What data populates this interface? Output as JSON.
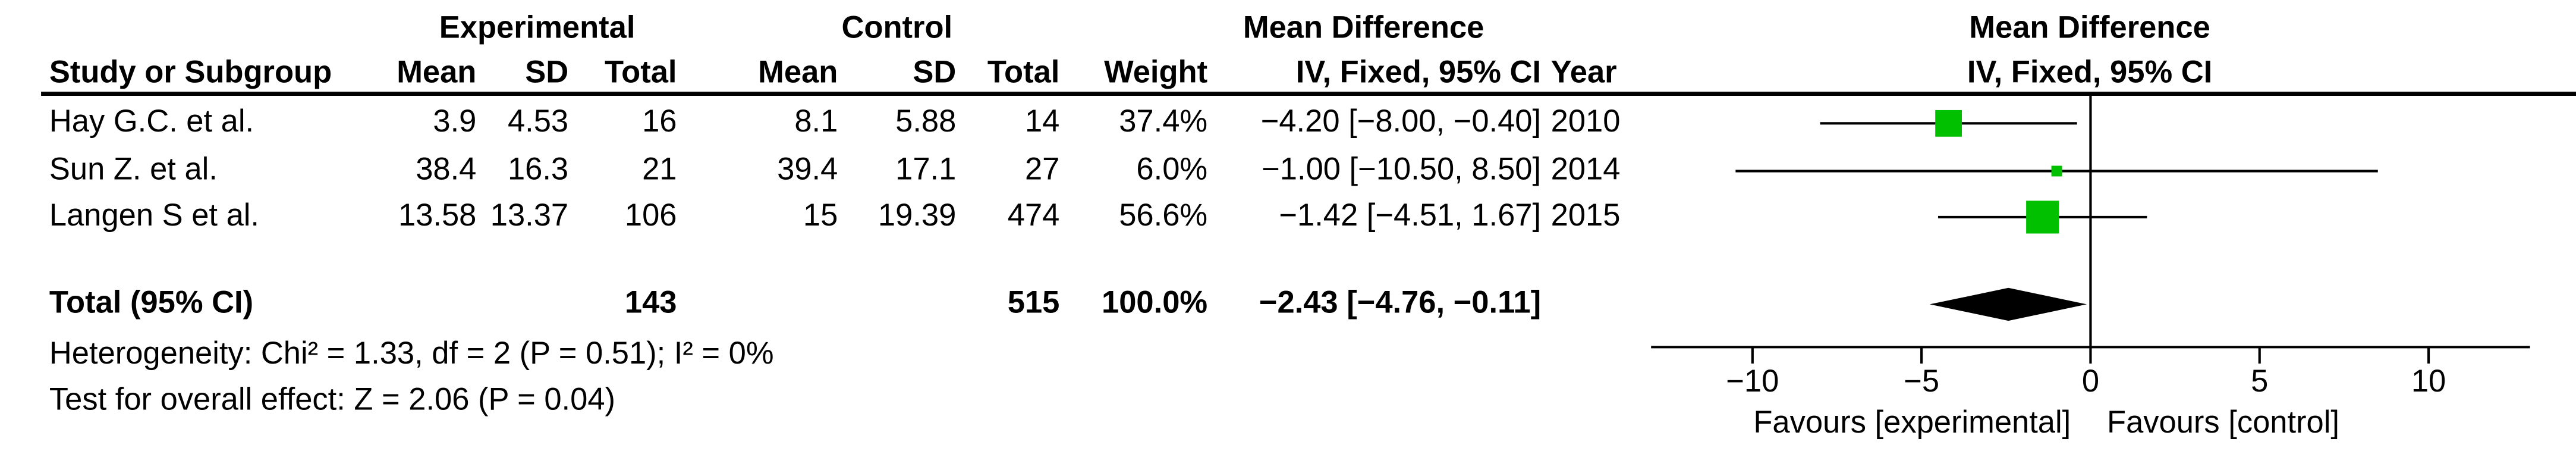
{
  "table": {
    "group_headers": {
      "experimental": "Experimental",
      "control": "Control",
      "effect": "Mean Difference"
    },
    "columns": [
      "Study or Subgroup",
      "Mean",
      "SD",
      "Total",
      "Mean",
      "SD",
      "Total",
      "Weight",
      "IV, Fixed, 95% CI",
      "Year"
    ],
    "rows": [
      [
        "Hay G.C. et al.",
        "3.9",
        "4.53",
        "16",
        "8.1",
        "5.88",
        "14",
        "37.4%",
        "−4.20 [−8.00, −0.40]",
        "2010"
      ],
      [
        "Sun Z. et al.",
        "38.4",
        "16.3",
        "21",
        "39.4",
        "17.1",
        "27",
        "6.0%",
        "−1.00 [−10.50, 8.50]",
        "2014"
      ],
      [
        "Langen S et al.",
        "13.58",
        "13.37",
        "106",
        "15",
        "19.39",
        "474",
        "56.6%",
        "−1.42 [−4.51, 1.67]",
        "2015"
      ]
    ],
    "total": {
      "label": "Total (95% CI)",
      "exp_total": "143",
      "ctrl_total": "515",
      "weight": "100.0%",
      "ci": "−2.43 [−4.76, −0.11]"
    },
    "heterogeneity": "Heterogeneity: Chi² = 1.33, df = 2 (P = 0.51); I² = 0%",
    "overall": "Test for overall effect: Z = 2.06 (P = 0.04)"
  },
  "chart_data": {
    "type": "forest",
    "title": "Mean Difference",
    "subtitle": "IV, Fixed, 95% CI",
    "estimates": [
      -4.2,
      -1.0,
      -1.42
    ],
    "lower": [
      -8.0,
      -10.5,
      -4.51
    ],
    "upper": [
      -0.4,
      8.5,
      1.67
    ],
    "weights": [
      37.4,
      6.0,
      56.6
    ],
    "total": {
      "estimate": -2.43,
      "lower": -4.76,
      "upper": -0.11
    },
    "color": "#00c000",
    "total_color": "#000000",
    "xlim": [
      -13,
      13
    ],
    "xticks": [
      {
        "value": -10,
        "label": "−10"
      },
      {
        "value": -5,
        "label": "−5"
      },
      0,
      5,
      10
    ],
    "favours_left": "Favours [experimental]",
    "favours_right": "Favours [control]"
  }
}
